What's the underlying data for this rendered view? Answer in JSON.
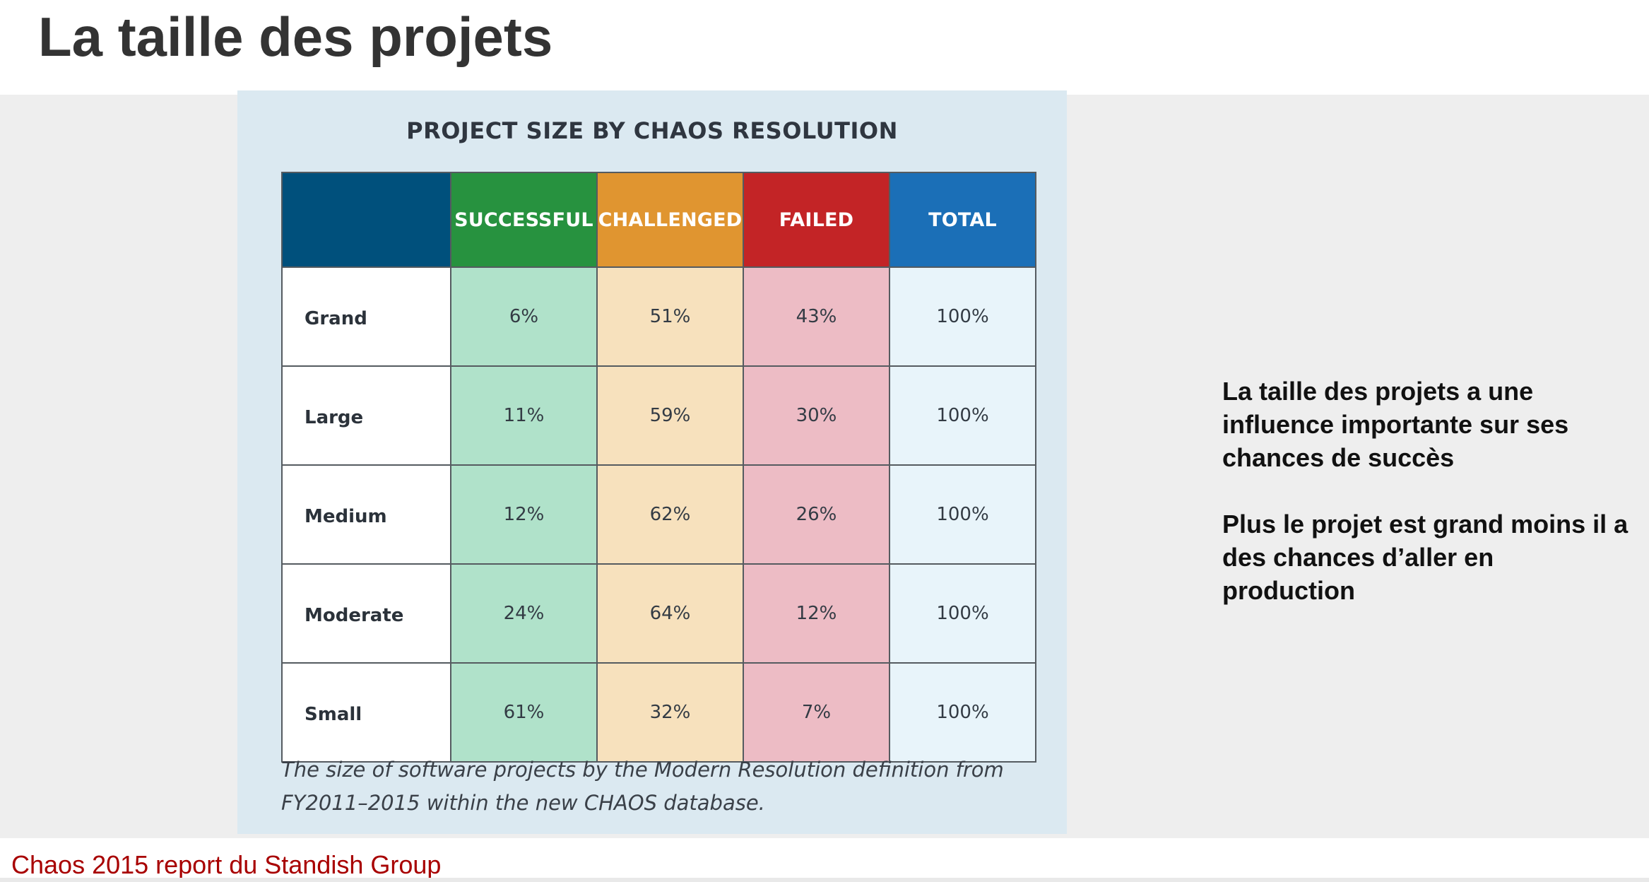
{
  "slide": {
    "title": "La taille des projets",
    "source": "Chaos 2015 report du Standish Group"
  },
  "figure": {
    "title": "PROJECT SIZE BY CHAOS RESOLUTION",
    "caption": "The size of software projects by the Modern Resolution definition from FY2011–2015 within the new CHAOS database."
  },
  "table": {
    "headers": [
      "SUCCESSFUL",
      "CHALLENGED",
      "FAILED",
      "TOTAL"
    ],
    "header_colors": {
      "corner": "#00507c",
      "successful": "#27923f",
      "challenged": "#e09530",
      "failed": "#c32426",
      "total": "#1b6fb7"
    },
    "rows": [
      {
        "label": "Grand",
        "cells": [
          "6%",
          "51%",
          "43%",
          "100%"
        ]
      },
      {
        "label": "Large",
        "cells": [
          "11%",
          "59%",
          "30%",
          "100%"
        ]
      },
      {
        "label": "Medium",
        "cells": [
          "12%",
          "62%",
          "26%",
          "100%"
        ]
      },
      {
        "label": "Moderate",
        "cells": [
          "24%",
          "64%",
          "12%",
          "100%"
        ]
      },
      {
        "label": "Small",
        "cells": [
          "61%",
          "32%",
          "7%",
          "100%"
        ]
      }
    ]
  },
  "side_note": {
    "paragraph_1": "La taille des projets a une influence importante sur ses chances de succès",
    "paragraph_2": "Plus le projet est grand moins il a des chances d’aller en production"
  }
}
